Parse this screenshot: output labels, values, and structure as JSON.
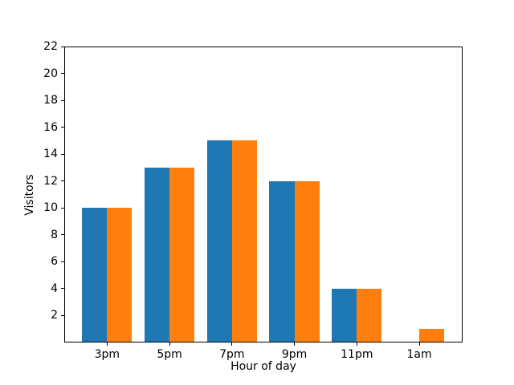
{
  "chart_data": {
    "type": "bar",
    "title": "",
    "xlabel": "Hour of day",
    "ylabel": "Visitors",
    "categories": [
      "3pm",
      "5pm",
      "7pm",
      "9pm",
      "11pm",
      "1am"
    ],
    "series": [
      {
        "name": "series-blue",
        "color": "#1f77b4",
        "values": [
          10,
          13,
          15,
          12,
          4,
          0
        ]
      },
      {
        "name": "series-orange",
        "color": "#ff7f0e",
        "values": [
          10,
          13,
          15,
          12,
          4,
          1
        ]
      }
    ],
    "ylim": [
      0,
      22
    ],
    "yticks": [
      2,
      4,
      6,
      8,
      10,
      12,
      14,
      16,
      18,
      20,
      22
    ],
    "grid": false,
    "legend_position": "none",
    "background_color": "#ffffff",
    "spine_color": "#000000"
  }
}
